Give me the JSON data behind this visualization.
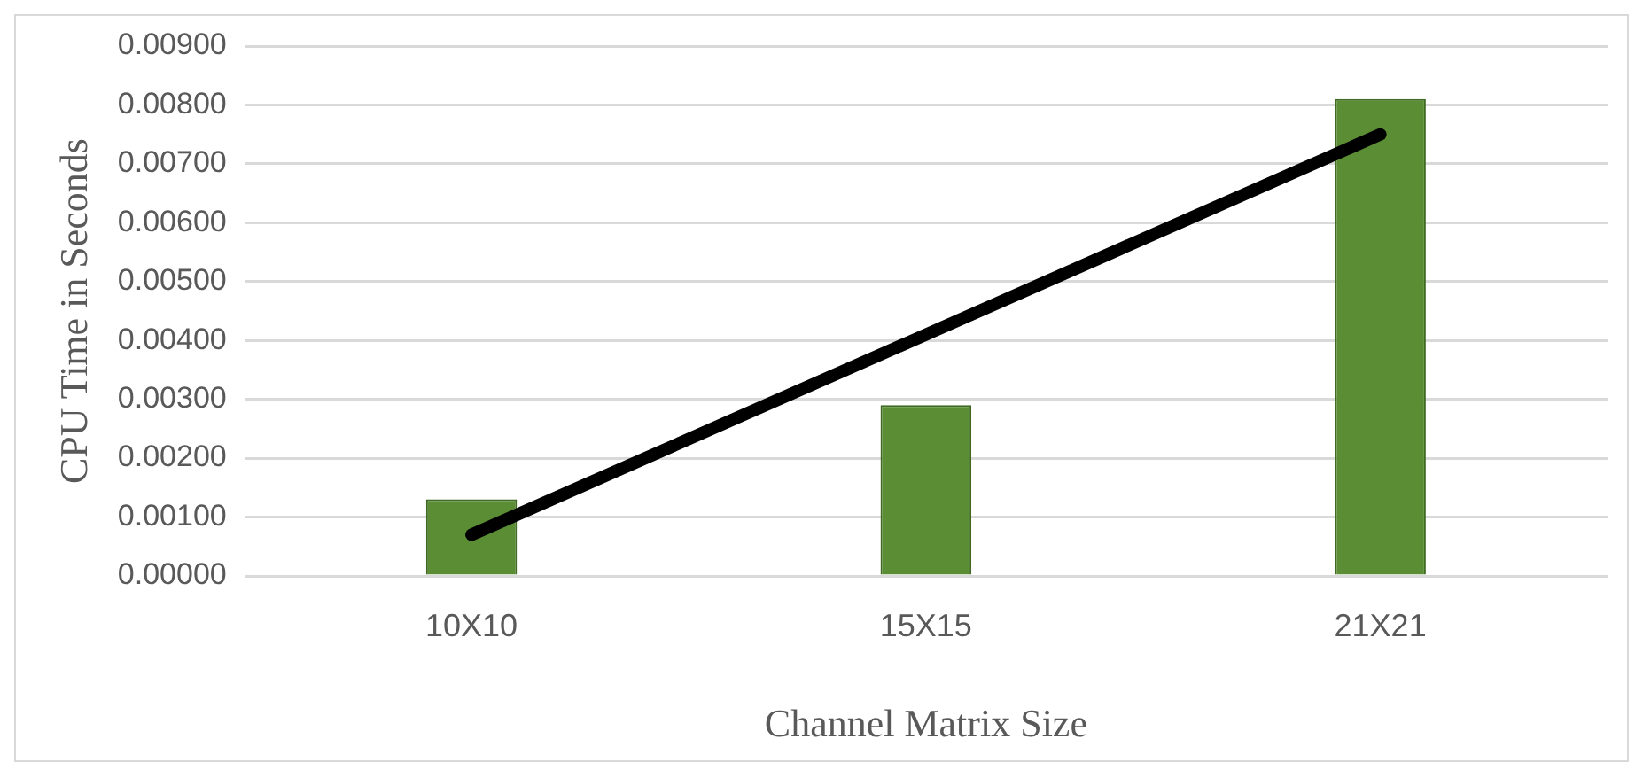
{
  "chart_data": {
    "type": "bar",
    "xlabel": "Channel Matrix Size",
    "ylabel": "CPU Time in Seconds",
    "categories": [
      "10X10",
      "15X15",
      "21X21"
    ],
    "series": [
      {
        "color": "#5b8e34",
        "values": [
          0.0013,
          0.0029,
          0.0081
        ]
      },
      {
        "type": "line",
        "color": "#000000",
        "values": [
          0.0007,
          0.0041,
          0.0075
        ]
      }
    ],
    "ylim": [
      0,
      0.009
    ],
    "yticks": [
      {
        "value": 0,
        "label": "0.00000"
      },
      {
        "value": 0.001,
        "label": "0.00100"
      },
      {
        "value": 0.002,
        "label": "0.00200"
      },
      {
        "value": 0.003,
        "label": "0.00300"
      },
      {
        "value": 0.004,
        "label": "0.00400"
      },
      {
        "value": 0.005,
        "label": "0.00500"
      },
      {
        "value": 0.006,
        "label": "0.00600"
      },
      {
        "value": 0.007,
        "label": "0.00700"
      },
      {
        "value": 0.008,
        "label": "0.00800"
      },
      {
        "value": 0.009,
        "label": "0.00900"
      }
    ],
    "grid": "y",
    "legend": false,
    "marker": "none",
    "line_style": "solid"
  }
}
